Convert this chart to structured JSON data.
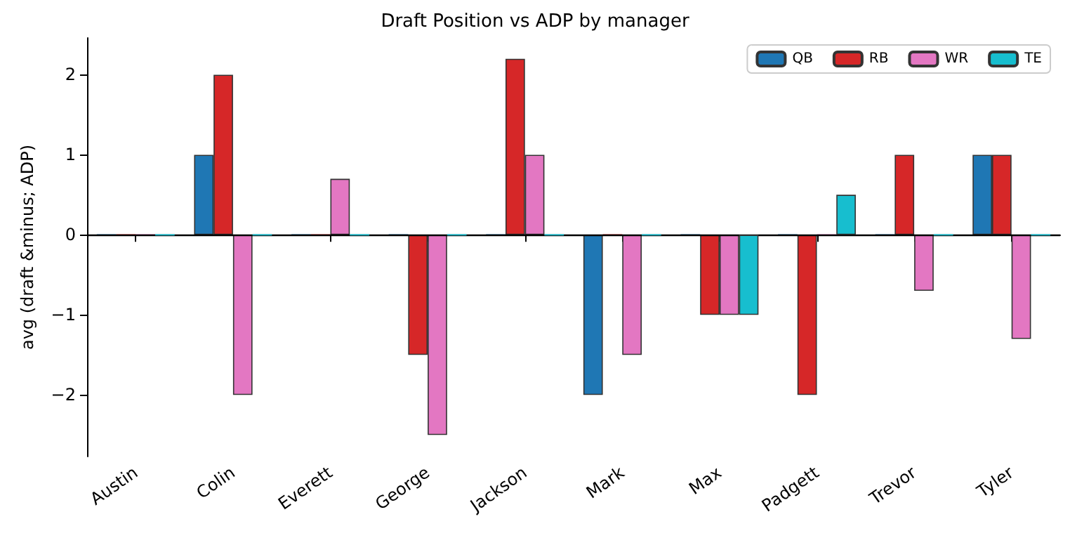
{
  "chart_data": {
    "type": "bar",
    "title": "Draft Position vs ADP by manager",
    "ylabel": "avg (draft &minus; ADP)",
    "categories": [
      "Austin",
      "Colin",
      "Everett",
      "George",
      "Jackson",
      "Mark",
      "Max",
      "Padgett",
      "Trevor",
      "Tyler"
    ],
    "series": [
      {
        "name": "QB",
        "color": "#1f77b4",
        "values": [
          0,
          1,
          0,
          0,
          0,
          -2,
          0,
          0,
          0,
          1
        ]
      },
      {
        "name": "RB",
        "color": "#d62728",
        "values": [
          0,
          2,
          0,
          -1.5,
          2.2,
          0,
          -1,
          -2,
          1,
          1
        ]
      },
      {
        "name": "WR",
        "color": "#e377c2",
        "values": [
          0,
          -2,
          0.7,
          -2.5,
          1,
          -1.5,
          -1,
          0,
          -0.7,
          -1.3
        ]
      },
      {
        "name": "TE",
        "color": "#17becf",
        "values": [
          0,
          0,
          0,
          0,
          0,
          0,
          -1,
          0.5,
          0,
          0
        ]
      }
    ],
    "ylim": [
      -2.77,
      2.46
    ],
    "yticks": [
      -2,
      -1,
      0,
      1,
      2
    ],
    "grid": false,
    "legend": "top right",
    "ref_lines": [
      {
        "axis": "y",
        "value": 0,
        "label": null,
        "color": "#000000"
      }
    ]
  }
}
